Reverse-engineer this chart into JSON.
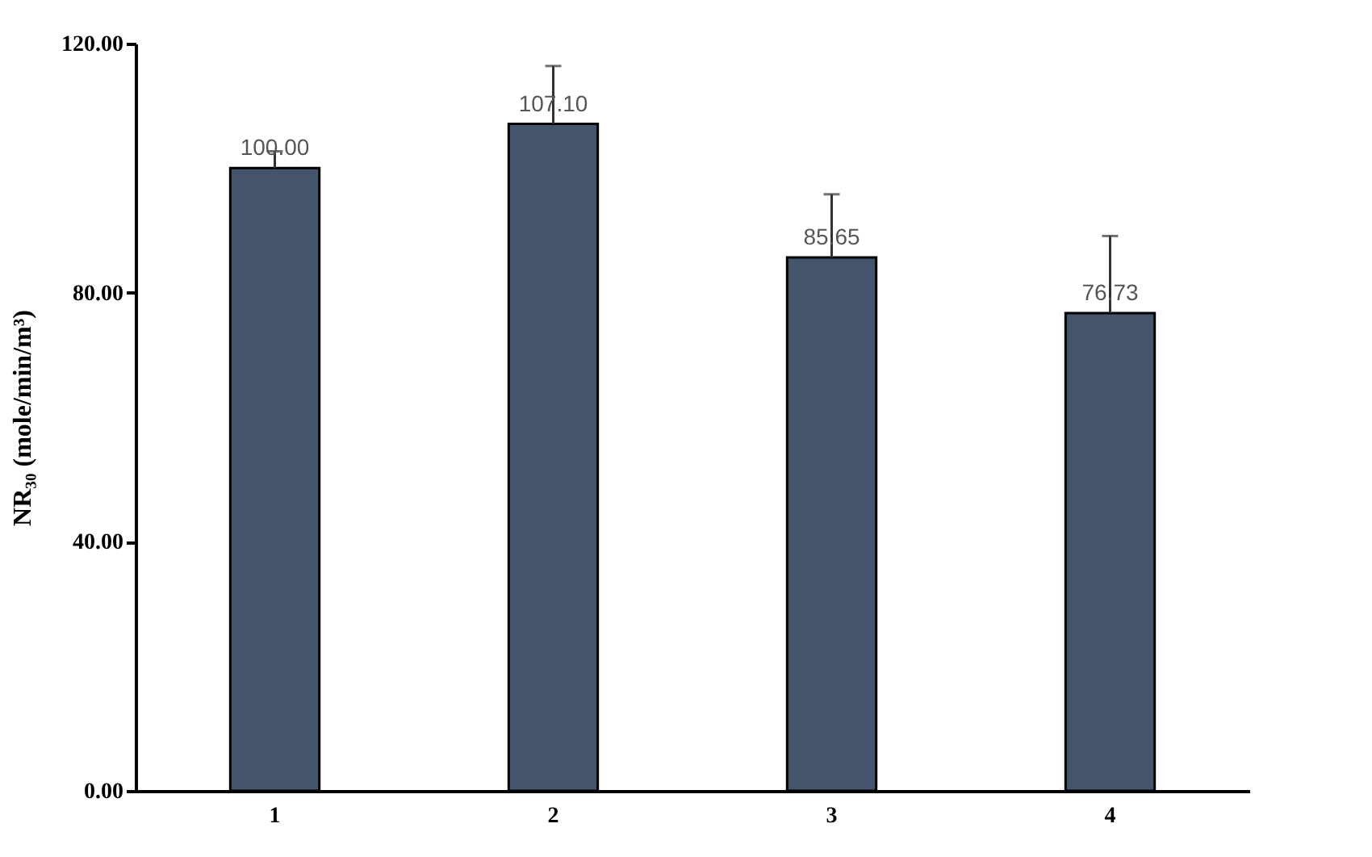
{
  "chart_data": {
    "type": "bar",
    "ylabel": "NR₃₀ (mole/min/m³)",
    "categories": [
      "1",
      "2",
      "3",
      "4"
    ],
    "values": [
      100.0,
      107.1,
      85.65,
      76.73
    ],
    "value_labels": [
      "100.00",
      "107.10",
      "85.65",
      "76.73"
    ],
    "errors": [
      [
        100.0,
        102.7
      ],
      [
        107.1,
        116.4
      ],
      [
        85.65,
        95.8
      ],
      [
        76.73,
        89.1
      ]
    ],
    "color": "#44546a",
    "ylim": [
      0,
      120
    ],
    "yticks": [
      {
        "value": 0,
        "label": "0.00"
      },
      {
        "value": 40,
        "label": "40.00"
      },
      {
        "value": 80,
        "label": "80.00"
      },
      {
        "value": 120,
        "label": "120.00"
      }
    ],
    "grid": false
  }
}
